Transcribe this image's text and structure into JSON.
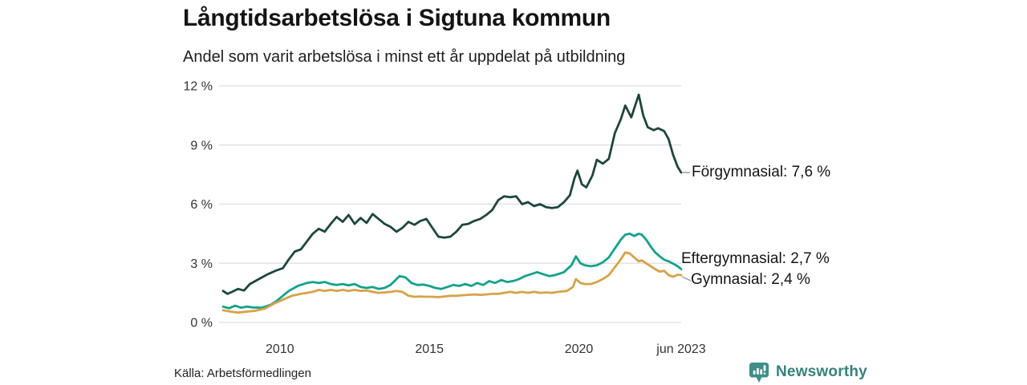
{
  "header": {
    "title": "Långtidsarbetslösa i Sigtuna kommun",
    "subtitle": "Andel som varit arbetslösa i minst ett år uppdelat på utbildning"
  },
  "chart_data": {
    "type": "line",
    "title": "Långtidsarbetslösa i Sigtuna kommun",
    "xlabel": "",
    "ylabel": "",
    "grid": "horizontal",
    "legend_position": "end-of-line-labels",
    "x_axis": {
      "min": 2008.1,
      "max": 2023.42,
      "ticks": [
        {
          "value": 2010,
          "label": "2010"
        },
        {
          "value": 2015,
          "label": "2015"
        },
        {
          "value": 2020,
          "label": "2020"
        },
        {
          "value": 2023.42,
          "label": "jun 2023"
        }
      ]
    },
    "y_axis": {
      "min": 0,
      "max": 12,
      "ticks": [
        {
          "value": 0,
          "label": "0 %"
        },
        {
          "value": 3,
          "label": "3 %"
        },
        {
          "value": 6,
          "label": "6 %"
        },
        {
          "value": 9,
          "label": "9 %"
        },
        {
          "value": 12,
          "label": "12 %"
        }
      ]
    },
    "series": [
      {
        "name": "Förgymnasial",
        "color": "#1d463d",
        "end_value": "7,6 %",
        "end_label": "Förgymnasial: 7,6 %",
        "points": [
          [
            2008.1,
            1.6
          ],
          [
            2008.25,
            1.45
          ],
          [
            2008.4,
            1.55
          ],
          [
            2008.6,
            1.7
          ],
          [
            2008.8,
            1.62
          ],
          [
            2009.0,
            1.95
          ],
          [
            2009.3,
            2.2
          ],
          [
            2009.6,
            2.45
          ],
          [
            2009.9,
            2.65
          ],
          [
            2010.1,
            2.75
          ],
          [
            2010.3,
            3.2
          ],
          [
            2010.5,
            3.6
          ],
          [
            2010.7,
            3.7
          ],
          [
            2010.9,
            4.1
          ],
          [
            2011.1,
            4.5
          ],
          [
            2011.3,
            4.75
          ],
          [
            2011.5,
            4.6
          ],
          [
            2011.7,
            5.0
          ],
          [
            2011.9,
            5.35
          ],
          [
            2012.1,
            5.1
          ],
          [
            2012.3,
            5.45
          ],
          [
            2012.5,
            5.0
          ],
          [
            2012.7,
            5.3
          ],
          [
            2012.9,
            5.05
          ],
          [
            2013.1,
            5.5
          ],
          [
            2013.3,
            5.25
          ],
          [
            2013.5,
            5.0
          ],
          [
            2013.7,
            4.85
          ],
          [
            2013.9,
            4.6
          ],
          [
            2014.1,
            4.8
          ],
          [
            2014.3,
            5.1
          ],
          [
            2014.5,
            4.95
          ],
          [
            2014.7,
            5.15
          ],
          [
            2014.9,
            5.25
          ],
          [
            2015.1,
            4.8
          ],
          [
            2015.3,
            4.35
          ],
          [
            2015.5,
            4.3
          ],
          [
            2015.7,
            4.35
          ],
          [
            2015.9,
            4.6
          ],
          [
            2016.1,
            4.95
          ],
          [
            2016.3,
            5.0
          ],
          [
            2016.5,
            5.15
          ],
          [
            2016.7,
            5.25
          ],
          [
            2016.9,
            5.45
          ],
          [
            2017.1,
            5.7
          ],
          [
            2017.3,
            6.2
          ],
          [
            2017.5,
            6.4
          ],
          [
            2017.7,
            6.35
          ],
          [
            2017.9,
            6.4
          ],
          [
            2018.1,
            6.0
          ],
          [
            2018.3,
            6.1
          ],
          [
            2018.5,
            5.9
          ],
          [
            2018.7,
            6.0
          ],
          [
            2018.9,
            5.85
          ],
          [
            2019.1,
            5.8
          ],
          [
            2019.3,
            5.85
          ],
          [
            2019.5,
            6.1
          ],
          [
            2019.7,
            6.45
          ],
          [
            2019.85,
            7.3
          ],
          [
            2019.95,
            7.7
          ],
          [
            2020.1,
            7.0
          ],
          [
            2020.25,
            6.85
          ],
          [
            2020.45,
            7.45
          ],
          [
            2020.6,
            8.25
          ],
          [
            2020.8,
            8.05
          ],
          [
            2021.0,
            8.3
          ],
          [
            2021.2,
            9.6
          ],
          [
            2021.4,
            10.3
          ],
          [
            2021.55,
            11.0
          ],
          [
            2021.75,
            10.4
          ],
          [
            2022.0,
            11.55
          ],
          [
            2022.15,
            10.5
          ],
          [
            2022.3,
            9.9
          ],
          [
            2022.5,
            9.75
          ],
          [
            2022.65,
            9.85
          ],
          [
            2022.85,
            9.7
          ],
          [
            2023.0,
            9.3
          ],
          [
            2023.15,
            8.5
          ],
          [
            2023.3,
            7.9
          ],
          [
            2023.42,
            7.6
          ]
        ]
      },
      {
        "name": "Eftergymnasial",
        "color": "#13a28a",
        "end_value": "2,7 %",
        "end_label": "Eftergymnasial: 2,7 %",
        "points": [
          [
            2008.1,
            0.8
          ],
          [
            2008.3,
            0.72
          ],
          [
            2008.5,
            0.85
          ],
          [
            2008.7,
            0.75
          ],
          [
            2008.9,
            0.8
          ],
          [
            2009.1,
            0.76
          ],
          [
            2009.4,
            0.75
          ],
          [
            2009.7,
            0.9
          ],
          [
            2009.9,
            1.1
          ],
          [
            2010.1,
            1.35
          ],
          [
            2010.3,
            1.6
          ],
          [
            2010.6,
            1.85
          ],
          [
            2010.9,
            2.0
          ],
          [
            2011.1,
            2.05
          ],
          [
            2011.3,
            2.0
          ],
          [
            2011.5,
            2.05
          ],
          [
            2011.7,
            1.95
          ],
          [
            2011.9,
            1.9
          ],
          [
            2012.1,
            1.95
          ],
          [
            2012.3,
            1.88
          ],
          [
            2012.5,
            1.95
          ],
          [
            2012.7,
            1.8
          ],
          [
            2012.9,
            1.75
          ],
          [
            2013.1,
            1.8
          ],
          [
            2013.3,
            1.7
          ],
          [
            2013.5,
            1.75
          ],
          [
            2013.7,
            1.9
          ],
          [
            2013.9,
            2.2
          ],
          [
            2014.0,
            2.35
          ],
          [
            2014.2,
            2.28
          ],
          [
            2014.4,
            2.0
          ],
          [
            2014.6,
            1.9
          ],
          [
            2014.8,
            1.92
          ],
          [
            2015.0,
            1.85
          ],
          [
            2015.2,
            1.75
          ],
          [
            2015.4,
            1.7
          ],
          [
            2015.6,
            1.8
          ],
          [
            2015.8,
            1.9
          ],
          [
            2016.0,
            1.85
          ],
          [
            2016.2,
            1.95
          ],
          [
            2016.4,
            1.85
          ],
          [
            2016.6,
            2.0
          ],
          [
            2016.8,
            1.9
          ],
          [
            2017.0,
            2.1
          ],
          [
            2017.2,
            2.0
          ],
          [
            2017.4,
            2.15
          ],
          [
            2017.6,
            2.05
          ],
          [
            2017.8,
            2.1
          ],
          [
            2018.0,
            2.2
          ],
          [
            2018.2,
            2.35
          ],
          [
            2018.4,
            2.45
          ],
          [
            2018.6,
            2.55
          ],
          [
            2018.8,
            2.45
          ],
          [
            2019.0,
            2.35
          ],
          [
            2019.2,
            2.4
          ],
          [
            2019.5,
            2.55
          ],
          [
            2019.75,
            2.9
          ],
          [
            2019.9,
            3.35
          ],
          [
            2020.05,
            3.0
          ],
          [
            2020.2,
            2.9
          ],
          [
            2020.4,
            2.85
          ],
          [
            2020.6,
            2.9
          ],
          [
            2020.8,
            3.05
          ],
          [
            2021.0,
            3.3
          ],
          [
            2021.2,
            3.75
          ],
          [
            2021.4,
            4.2
          ],
          [
            2021.55,
            4.45
          ],
          [
            2021.7,
            4.5
          ],
          [
            2021.85,
            4.38
          ],
          [
            2022.0,
            4.5
          ],
          [
            2022.1,
            4.45
          ],
          [
            2022.25,
            4.2
          ],
          [
            2022.4,
            3.85
          ],
          [
            2022.55,
            3.55
          ],
          [
            2022.7,
            3.35
          ],
          [
            2022.85,
            3.18
          ],
          [
            2023.0,
            3.1
          ],
          [
            2023.15,
            2.98
          ],
          [
            2023.3,
            2.85
          ],
          [
            2023.42,
            2.7
          ]
        ]
      },
      {
        "name": "Gymnasial",
        "color": "#d6a348",
        "end_value": "2,4 %",
        "end_label": "Gymnasial: 2,4 %",
        "points": [
          [
            2008.1,
            0.62
          ],
          [
            2008.35,
            0.55
          ],
          [
            2008.6,
            0.5
          ],
          [
            2008.9,
            0.55
          ],
          [
            2009.2,
            0.6
          ],
          [
            2009.5,
            0.7
          ],
          [
            2009.8,
            0.95
          ],
          [
            2010.1,
            1.15
          ],
          [
            2010.4,
            1.35
          ],
          [
            2010.7,
            1.45
          ],
          [
            2010.9,
            1.5
          ],
          [
            2011.1,
            1.55
          ],
          [
            2011.3,
            1.65
          ],
          [
            2011.5,
            1.6
          ],
          [
            2011.7,
            1.65
          ],
          [
            2011.9,
            1.6
          ],
          [
            2012.1,
            1.65
          ],
          [
            2012.3,
            1.6
          ],
          [
            2012.5,
            1.65
          ],
          [
            2012.7,
            1.6
          ],
          [
            2012.9,
            1.62
          ],
          [
            2013.1,
            1.55
          ],
          [
            2013.3,
            1.5
          ],
          [
            2013.5,
            1.52
          ],
          [
            2013.7,
            1.55
          ],
          [
            2013.9,
            1.6
          ],
          [
            2014.1,
            1.55
          ],
          [
            2014.3,
            1.35
          ],
          [
            2014.5,
            1.3
          ],
          [
            2014.7,
            1.32
          ],
          [
            2014.9,
            1.3
          ],
          [
            2015.1,
            1.3
          ],
          [
            2015.3,
            1.28
          ],
          [
            2015.5,
            1.32
          ],
          [
            2015.7,
            1.35
          ],
          [
            2015.9,
            1.35
          ],
          [
            2016.1,
            1.38
          ],
          [
            2016.3,
            1.4
          ],
          [
            2016.5,
            1.42
          ],
          [
            2016.7,
            1.4
          ],
          [
            2016.9,
            1.42
          ],
          [
            2017.1,
            1.45
          ],
          [
            2017.3,
            1.45
          ],
          [
            2017.5,
            1.5
          ],
          [
            2017.7,
            1.55
          ],
          [
            2017.9,
            1.5
          ],
          [
            2018.1,
            1.55
          ],
          [
            2018.3,
            1.5
          ],
          [
            2018.5,
            1.55
          ],
          [
            2018.7,
            1.5
          ],
          [
            2018.9,
            1.52
          ],
          [
            2019.1,
            1.5
          ],
          [
            2019.3,
            1.55
          ],
          [
            2019.6,
            1.6
          ],
          [
            2019.8,
            1.8
          ],
          [
            2019.9,
            2.2
          ],
          [
            2020.05,
            2.0
          ],
          [
            2020.2,
            1.95
          ],
          [
            2020.4,
            1.95
          ],
          [
            2020.6,
            2.05
          ],
          [
            2020.8,
            2.2
          ],
          [
            2021.0,
            2.4
          ],
          [
            2021.2,
            2.8
          ],
          [
            2021.4,
            3.2
          ],
          [
            2021.55,
            3.55
          ],
          [
            2021.7,
            3.5
          ],
          [
            2021.85,
            3.3
          ],
          [
            2022.0,
            3.1
          ],
          [
            2022.1,
            3.15
          ],
          [
            2022.25,
            3.0
          ],
          [
            2022.4,
            2.85
          ],
          [
            2022.55,
            2.7
          ],
          [
            2022.7,
            2.58
          ],
          [
            2022.85,
            2.62
          ],
          [
            2023.0,
            2.4
          ],
          [
            2023.15,
            2.32
          ],
          [
            2023.3,
            2.42
          ],
          [
            2023.42,
            2.4
          ]
        ]
      }
    ],
    "colors": {
      "grid": "#e2e2e8",
      "connector": "#999999",
      "brand_teal": "#35837e",
      "brand_icon": "#3f8f89"
    }
  },
  "footer": {
    "source": "Källa: Arbetsförmedlingen",
    "brand": "Newsworthy"
  }
}
